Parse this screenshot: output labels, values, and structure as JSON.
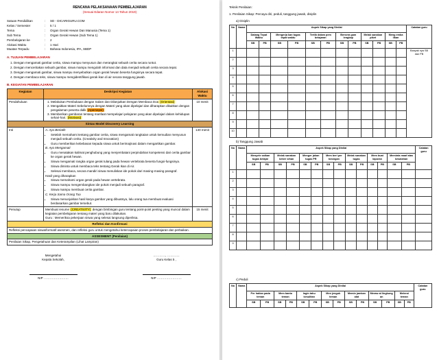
{
  "header": {
    "title": "RENCANA PELAKSANAAN PEMBELAJARAN",
    "subtitle": "(Sesuai Edaran Nomor 14 Tahun 2019)"
  },
  "info": {
    "satuan_label": "Satuan Pendidikan",
    "satuan": "SD - DICARIGURU.COM",
    "kelas_label": "Kelas / Semester",
    "kelas": "5 / 1",
    "tema_label": "Tema",
    "tema": "Organ Gerak Hewan Dan Manusia (Tema 1)",
    "subtema_label": "Sub Tema",
    "subtema": "Organ Gerak Hewan (Sub Tema 1)",
    "pembelajaran_label": "Pembelajaran ke",
    "pembelajaran": "2",
    "alokasi_label": "Alokasi Waktu",
    "alokasi": "1 Hari",
    "muatan_label": "Muatan Terpadu",
    "muatan": "Bahasa Indonesia, IPA, SBDP"
  },
  "tujuan": {
    "heading": "A. TUJUAN PEMBELAJARAN",
    "items": [
      "Dengan mengamati gambar cerita, siswa mampu menyusun dan merangkai sebuah cerita secara runtut.",
      "Dengan menceritakan sebuah gambar, siswa mampu mengolah informasi dan data menjadi sebuah cerita secara tepat.",
      "Dengan mengamati gambar, siswa mampu menyebutkan organ gerak hewan beserta fungsinya secara tepat.",
      "Dengan membaca teks, siswa mampu mengidentifikasi gerak ikan di air secara tanggung jawab."
    ]
  },
  "kegiatan": {
    "heading": "B. KEGIATAN PEMBELAJARAN",
    "cols": {
      "kegiatan": "Kegiatan",
      "deskripsi": "Deskripsi Kegiatan",
      "waktu": "Alokasi Waktu"
    },
    "pendahuluan": {
      "label": "Pendahuluan",
      "items": [
        {
          "text": "Melakukan Pembukaan dengan Salam dan Dilanjutkan Dengan Membaca Doa ",
          "hl": "(Orientasi)"
        },
        {
          "text": "Mengaitkan Materi Sebelumnya dengan Materi yang akan dipelajari dan diharapkan dikaitkan dengan pengalaman peserta didik ",
          "hl": "(Apersepsi)"
        },
        {
          "text": "Memberikan gambaran tentang manfaat mempelajari pelajaran yang akan dipelajari dalam kehidupan sehari-hari. ",
          "hl": "(Motivasi)"
        }
      ],
      "waktu": "10 menit"
    },
    "sintax": "Sintax Model Discovery Learning",
    "inti": {
      "label": "Inti",
      "ayo": "A. Ayo Berlatih",
      "ayo_items": [
        "Setelah memahami tentang gambar cerita, siswa mengamati rangkaian untuk kemudian menyusun menjadi sebuah cerita. (Creativity and Innovation)",
        "Guru memberikan kebebasan kepada siswa untuk berimajinasi dalam mengartikan gambar."
      ],
      "ayo2": "B. Ayo Mengamati",
      "ayo2_items": [
        "Guru menatakan kalimat penghubung yang menjembatani perpindahan kompetensi dari cerita gambar ke organ gerak hewan.",
        "Siswa mengamati rangka organ gerak tulang pada hewan vertebrata beserta fungsi-fungsinya.",
        "Siswa diminta untuk membaca teks tentang Gerak Ikan di Air.",
        "Selesai membaca, secara mandiri siswa menuliskan ide pokok dari masing-masing paragraf."
      ],
      "hasil": "Hasil yang diharapkan",
      "hasil_items": [
        "Siswa memahami organ gerak pada hewan vertebrata.",
        "Siswa mampu mengembangkan ide pokok menjadi sebuah paragraf.",
        "Siswa mampu membuat cerita gambar."
      ],
      "kerja": "C. Kerja Sama Orang Tua",
      "kerja_items": [
        "Siswa menunjukkan hasil karya gambar yang dibuatnya, lalu orang tua membuat evaluasi berdasarkan gambar tersebut."
      ],
      "waktu": "140 menit"
    },
    "penutup": {
      "label": "Penutup",
      "text": "Membuat resume ",
      "hl": "(CREATIVITY)",
      "text2": " dengan bimbingan guru tentang point-point penting yang muncul dalam kegiatan pembelajaran tentang materi yang baru dilakukan.",
      "guru": "Guru : Memeriksa pekerjaan siswa yang selesai langsung diperiksa.",
      "waktu": "15 menit"
    },
    "refleksi_head": "Refleksi dan Konfirmasi",
    "refleksi_text": "Refleksi pencapaian siswa/formatif asesmen, dan refleksi guru untuk mengetahui ketercapaian proses pembelajaran dan perbaikan.",
    "asesmen_head": "ASSESMENT (Penilaian)",
    "asesmen_text": "Penilaian Sikap, Pengetahuan dan Keterampilan (Lihat Lampiran)"
  },
  "sign": {
    "mengetahui": "Mengetahui",
    "kepala": "Kepala Sekolah,",
    "guru_label": "Guru Kelas 5 ,",
    "nip": "NIP"
  },
  "right": {
    "teknik": "Teknik Penilaian:",
    "penilaian": "1. Penilaian Sikap: Percaya diri, peduli, tanggung jawab, disiplin",
    "a": "a) Disiplin",
    "b": "b) Tanggung Jawab",
    "c": "c) Peduli",
    "table": {
      "no": "No",
      "nama": "Nama",
      "aspek": "Aspek Sikap yang Dinilai",
      "cols_a": [
        "Datang Tepat Waktu",
        "Mengerja kan tugas tepat waktu",
        "Tertib dalam pem belajaran",
        "Bersera gam lengkap",
        "Melak sanakan piket",
        "Meng emba likan"
      ],
      "cols_b": [
        "Menyele saikan tugas belajar",
        "Melak sanakan keber sihan",
        "Menger jakan tugas PR",
        "Mem beri per tolongan",
        "Melak sanakan tugas",
        "Mem buat laporan",
        "Meminta maaf atas kesalahan"
      ],
      "cols_c": [
        "Per hatian pada teman",
        "Mem bantu teman",
        "Ingin tahu kesulitan",
        "Men jenguk teman",
        "Memin jamkan alat",
        "Meraw at lingkung an",
        "Melerai teman"
      ],
      "catatan": "Catatan guru",
      "sb": "SB",
      "pb": "PB",
      "banyak": "Banyak nya SB dan PB"
    }
  }
}
